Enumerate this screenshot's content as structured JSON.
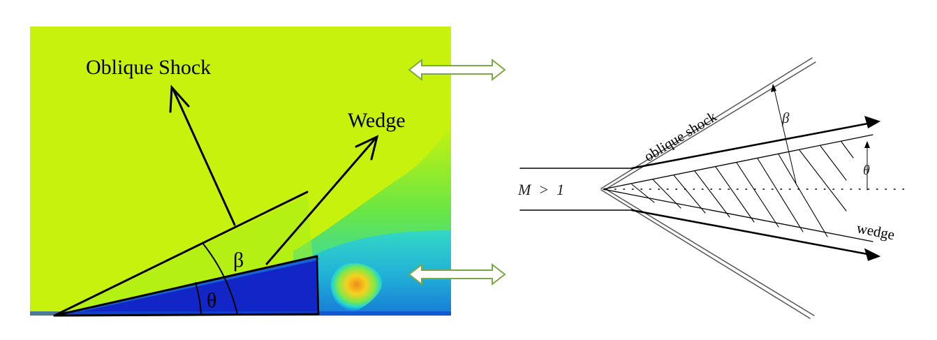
{
  "left_panel": {
    "oblique_shock_label": "Oblique Shock",
    "wedge_label": "Wedge",
    "beta_label": "β",
    "theta_label": "θ"
  },
  "right_panel": {
    "mach_label": "M  >  1",
    "oblique_shock_label": "oblique shock",
    "wedge_label": "wedge",
    "beta_label": "β",
    "theta_label": "θ"
  },
  "colors": {
    "freestream": "#c6f20e",
    "wedge_fill": "#1226c8",
    "wake_hot": "#f0a020",
    "double_arrow": "#7aa844"
  },
  "icons": [
    "double-arrow-icon",
    "double-arrow-icon"
  ]
}
